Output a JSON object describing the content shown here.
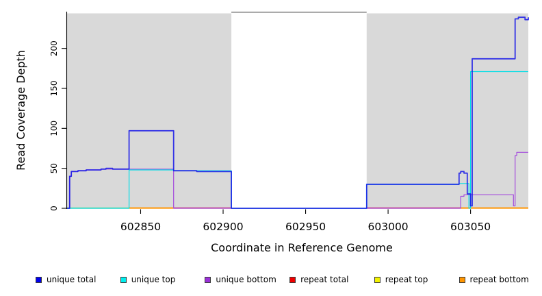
{
  "figure": {
    "background": "#FFFFFF"
  },
  "chart_data": {
    "type": "line",
    "subtype": "step-coverage",
    "title": "",
    "xlabel": "Coordinate in Reference Genome",
    "ylabel": "Read Coverage Depth",
    "xlim": [
      602805,
      603085
    ],
    "ylim": [
      0,
      246
    ],
    "x_ticks": [
      602850,
      602900,
      602950,
      603000,
      603050
    ],
    "y_ticks": [
      0,
      50,
      100,
      150,
      200
    ],
    "grid": false,
    "legend_position": "bottom",
    "shaded_regions": [
      {
        "from": 602805,
        "to": 602905,
        "color": "#D9D9D9"
      },
      {
        "from": 602987,
        "to": 603085,
        "color": "#D9D9D9"
      }
    ],
    "gap_region": {
      "from": 602905,
      "to": 602987,
      "top_border_color": "#8A8A8A"
    },
    "series": [
      {
        "name": "unique total",
        "color": "#1515E8",
        "width": 1.8,
        "opacity": 0.85,
        "points": [
          [
            602805,
            0
          ],
          [
            602807,
            40
          ],
          [
            602808,
            46
          ],
          [
            602812,
            47
          ],
          [
            602817,
            48
          ],
          [
            602826,
            49
          ],
          [
            602829,
            50
          ],
          [
            602833,
            49
          ],
          [
            602843,
            97
          ],
          [
            602870,
            47
          ],
          [
            602884,
            46
          ],
          [
            602905,
            0
          ],
          [
            602987,
            30
          ],
          [
            603043,
            44
          ],
          [
            603044,
            46
          ],
          [
            603046,
            44
          ],
          [
            603048,
            18
          ],
          [
            603050,
            3
          ],
          [
            603051,
            187
          ],
          [
            603077,
            237
          ],
          [
            603079,
            239
          ],
          [
            603083,
            236
          ],
          [
            603085,
            239
          ]
        ]
      },
      {
        "name": "unique top",
        "color": "#00DEE6",
        "width": 1.2,
        "opacity": 1,
        "points": [
          [
            602805,
            0
          ],
          [
            602843,
            48
          ],
          [
            602870,
            47
          ],
          [
            602905,
            0
          ],
          [
            602987,
            30
          ],
          [
            603043,
            31
          ],
          [
            603049,
            0
          ],
          [
            603050,
            171
          ],
          [
            603085,
            171
          ]
        ]
      },
      {
        "name": "unique bottom",
        "color": "#A44BDD",
        "width": 1.2,
        "opacity": 1,
        "points": [
          [
            602805,
            0
          ],
          [
            602807,
            40
          ],
          [
            602808,
            46
          ],
          [
            602812,
            47
          ],
          [
            602817,
            48
          ],
          [
            602826,
            49
          ],
          [
            602843,
            49
          ],
          [
            602870,
            0
          ],
          [
            603044,
            15
          ],
          [
            603046,
            17
          ],
          [
            603076,
            3
          ],
          [
            603077,
            66
          ],
          [
            603078,
            70
          ],
          [
            603085,
            70
          ]
        ]
      },
      {
        "name": "repeat total",
        "color": "#E60000",
        "width": 1.1,
        "opacity": 1,
        "points": [
          [
            602805,
            0
          ],
          [
            603085,
            0
          ]
        ]
      },
      {
        "name": "repeat top",
        "color": "#F0F000",
        "width": 1.1,
        "opacity": 1,
        "points": [
          [
            602805,
            0
          ],
          [
            603085,
            0
          ]
        ]
      },
      {
        "name": "repeat bottom",
        "color": "#FF9500",
        "width": 1.3,
        "opacity": 1,
        "points": [
          [
            602805,
            0
          ],
          [
            603085,
            0
          ]
        ]
      }
    ],
    "baseline_overlays": [
      {
        "from": 602805,
        "to": 602843,
        "color": "#96DBA0"
      },
      {
        "from": 602843,
        "to": 602870,
        "color": "#FF9500"
      },
      {
        "from": 602870,
        "to": 602905,
        "color": "#D14B79"
      },
      {
        "from": 602987,
        "to": 603044,
        "color": "#D14B79"
      },
      {
        "from": 603044,
        "to": 603085,
        "color": "#FF9500"
      }
    ]
  },
  "legend": {
    "items": [
      {
        "label": "unique total",
        "color": "#0000EE"
      },
      {
        "label": "unique top",
        "color": "#00EEEE"
      },
      {
        "label": "unique bottom",
        "color": "#9B30D9"
      },
      {
        "label": "repeat total",
        "color": "#EE0000"
      },
      {
        "label": "repeat top",
        "color": "#F2F200"
      },
      {
        "label": "repeat bottom",
        "color": "#FF9500"
      }
    ]
  }
}
